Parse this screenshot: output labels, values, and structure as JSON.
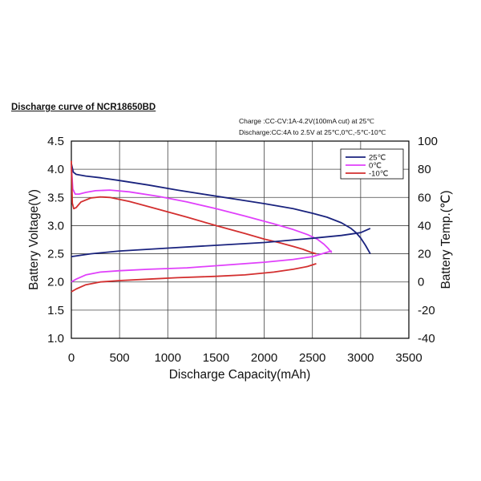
{
  "chart_data": {
    "type": "line",
    "title": "Discharge curve of NCR18650BD",
    "annotations": [
      "Charge :CC-CV:1A-4.2V(100mA cut) at 25℃",
      "Discharge:CC:4A to 2.5V at 25℃,0℃,-5℃-10℃"
    ],
    "xlabel": "Discharge Capacity(mAh)",
    "ylabel": "Battery Voltage(V)",
    "y2label": "Battery Temp.(℃)",
    "xlim": [
      0,
      3500
    ],
    "ylim": [
      1.0,
      4.5
    ],
    "y2lim": [
      -40,
      100
    ],
    "xticks": [
      0,
      500,
      1000,
      1500,
      2000,
      2500,
      3000,
      3500
    ],
    "yticks": [
      1.0,
      1.5,
      2.0,
      2.5,
      3.0,
      3.5,
      4.0,
      4.5
    ],
    "y2ticks": [
      -40,
      -20,
      0,
      20,
      40,
      60,
      80,
      100
    ],
    "grid": true,
    "legend_position": "top-right",
    "series": [
      {
        "name": "25℃",
        "quantity": "voltage",
        "color": "#1a237e",
        "x": [
          0,
          20,
          50,
          150,
          300,
          500,
          800,
          1100,
          1400,
          1700,
          2000,
          2300,
          2500,
          2650,
          2800,
          2900,
          2950,
          3000,
          3050,
          3100
        ],
        "y": [
          4.1,
          3.95,
          3.91,
          3.88,
          3.85,
          3.8,
          3.72,
          3.63,
          3.55,
          3.47,
          3.39,
          3.3,
          3.22,
          3.15,
          3.05,
          2.95,
          2.88,
          2.78,
          2.65,
          2.5
        ]
      },
      {
        "name": "0℃",
        "quantity": "voltage",
        "color": "#e040fb",
        "x": [
          0,
          15,
          40,
          80,
          150,
          250,
          400,
          600,
          900,
          1200,
          1500,
          1800,
          2100,
          2300,
          2450,
          2550,
          2620,
          2660,
          2700
        ],
        "y": [
          4.05,
          3.65,
          3.56,
          3.56,
          3.59,
          3.62,
          3.63,
          3.6,
          3.52,
          3.42,
          3.3,
          3.17,
          3.03,
          2.93,
          2.84,
          2.76,
          2.67,
          2.6,
          2.52
        ]
      },
      {
        "name": "-10℃",
        "quantity": "voltage",
        "color": "#d32f2f",
        "x": [
          0,
          10,
          25,
          50,
          100,
          200,
          300,
          400,
          600,
          900,
          1200,
          1500,
          1800,
          2000,
          2150,
          2300,
          2400,
          2480,
          2540
        ],
        "y": [
          4.15,
          3.4,
          3.3,
          3.32,
          3.42,
          3.49,
          3.51,
          3.5,
          3.43,
          3.29,
          3.15,
          3.0,
          2.86,
          2.76,
          2.7,
          2.63,
          2.58,
          2.53,
          2.5
        ]
      },
      {
        "name": "25℃ temperature",
        "quantity": "temperature",
        "color": "#1a237e",
        "x": [
          0,
          200,
          500,
          1000,
          1500,
          2000,
          2500,
          2800,
          3000,
          3100
        ],
        "y": [
          18,
          20,
          22,
          24,
          26,
          28,
          31,
          33,
          35,
          38
        ]
      },
      {
        "name": "0℃ temperature",
        "quantity": "temperature",
        "color": "#e040fb",
        "x": [
          0,
          50,
          150,
          300,
          500,
          800,
          1200,
          1600,
          2000,
          2300,
          2500,
          2650,
          2700
        ],
        "y": [
          0,
          2,
          5,
          7,
          8,
          9,
          10,
          12,
          14,
          16,
          18,
          21,
          22
        ]
      },
      {
        "name": "-10℃ temperature",
        "quantity": "temperature",
        "color": "#d32f2f",
        "x": [
          0,
          50,
          150,
          300,
          500,
          800,
          1100,
          1500,
          1800,
          2100,
          2300,
          2450,
          2540
        ],
        "y": [
          -7,
          -5,
          -2,
          0,
          1,
          2,
          3,
          4,
          5,
          7,
          9,
          11,
          13
        ]
      }
    ]
  }
}
